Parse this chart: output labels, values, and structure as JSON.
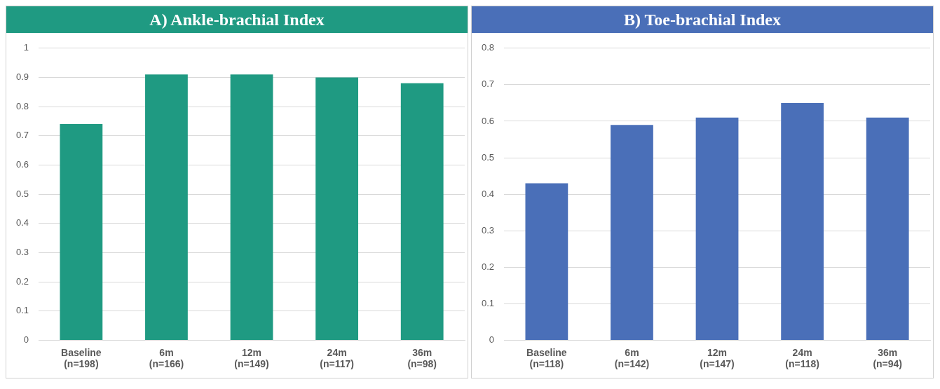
{
  "chart_data": [
    {
      "type": "bar",
      "title": "A) Ankle-brachial Index",
      "categories": [
        "Baseline\n(n=198)",
        "6m\n(n=166)",
        "12m\n(n=149)",
        "24m\n(n=117)",
        "36m\n(n=98)"
      ],
      "values": [
        0.74,
        0.91,
        0.91,
        0.9,
        0.88
      ],
      "color": "#1f9a82",
      "ylim": [
        0,
        1
      ],
      "yticks": [
        0,
        0.1,
        0.2,
        0.3,
        0.4,
        0.5,
        0.6,
        0.7,
        0.8,
        0.9,
        1
      ],
      "grid": "y"
    },
    {
      "type": "bar",
      "title": "B) Toe-brachial Index",
      "categories": [
        "Baseline\n(n=118)",
        "6m\n(n=142)",
        "12m\n(n=147)",
        "24m\n(n=118)",
        "36m\n(n=94)"
      ],
      "values": [
        0.43,
        0.59,
        0.61,
        0.65,
        0.61
      ],
      "color": "#4a6fb8",
      "ylim": [
        0,
        0.8
      ],
      "yticks": [
        0,
        0.1,
        0.2,
        0.3,
        0.4,
        0.5,
        0.6,
        0.7,
        0.8
      ],
      "grid": "y"
    }
  ]
}
